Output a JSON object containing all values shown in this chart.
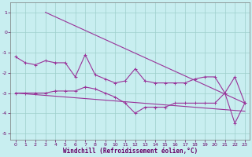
{
  "xlabel": "Windchill (Refroidissement éolien,°C)",
  "bg_color": "#c8eef0",
  "grid_color": "#9ecfcc",
  "line_color": "#993399",
  "xlim": [
    -0.5,
    23.5
  ],
  "ylim": [
    -5.3,
    1.5
  ],
  "xticks": [
    0,
    1,
    2,
    3,
    4,
    5,
    6,
    7,
    8,
    9,
    10,
    11,
    12,
    13,
    14,
    15,
    16,
    17,
    18,
    19,
    20,
    21,
    22,
    23
  ],
  "yticks": [
    1,
    0,
    -1,
    -2,
    -3,
    -4,
    -5
  ],
  "line1_x": [
    0,
    1,
    2,
    3,
    4,
    5,
    6,
    7,
    8,
    9,
    10,
    11,
    12,
    13,
    14,
    15,
    16,
    17,
    18,
    19,
    20,
    21,
    22,
    23
  ],
  "line1_y": [
    -1.2,
    -1.5,
    -1.6,
    -1.4,
    -1.5,
    -1.5,
    -2.2,
    -1.1,
    -2.1,
    -2.3,
    -2.5,
    -2.4,
    -1.8,
    -2.4,
    -2.5,
    -2.5,
    -2.5,
    -2.5,
    -2.3,
    -2.2,
    -2.2,
    -3.0,
    -2.2,
    -3.5
  ],
  "line2_x": [
    0,
    1,
    2,
    3,
    4,
    5,
    6,
    7,
    8,
    9,
    10,
    11,
    12,
    13,
    14,
    15,
    16,
    17,
    18,
    19,
    20,
    21,
    22,
    23
  ],
  "line2_y": [
    -3.0,
    -3.0,
    -3.0,
    -3.0,
    -2.9,
    -2.9,
    -2.9,
    -2.7,
    -2.8,
    -3.0,
    -3.2,
    -3.5,
    -4.0,
    -3.7,
    -3.7,
    -3.7,
    -3.5,
    -3.5,
    -3.5,
    -3.5,
    -3.5,
    -3.0,
    -4.5,
    -3.5
  ],
  "trend1_x": [
    3,
    23
  ],
  "trend1_y": [
    1.0,
    -3.5
  ],
  "trend2_x": [
    0,
    23
  ],
  "trend2_y": [
    -3.0,
    -3.9
  ],
  "xlabel_fontsize": 5.5,
  "tick_fontsize": 4.5,
  "tick_color": "#660066",
  "xlabel_color": "#660066"
}
